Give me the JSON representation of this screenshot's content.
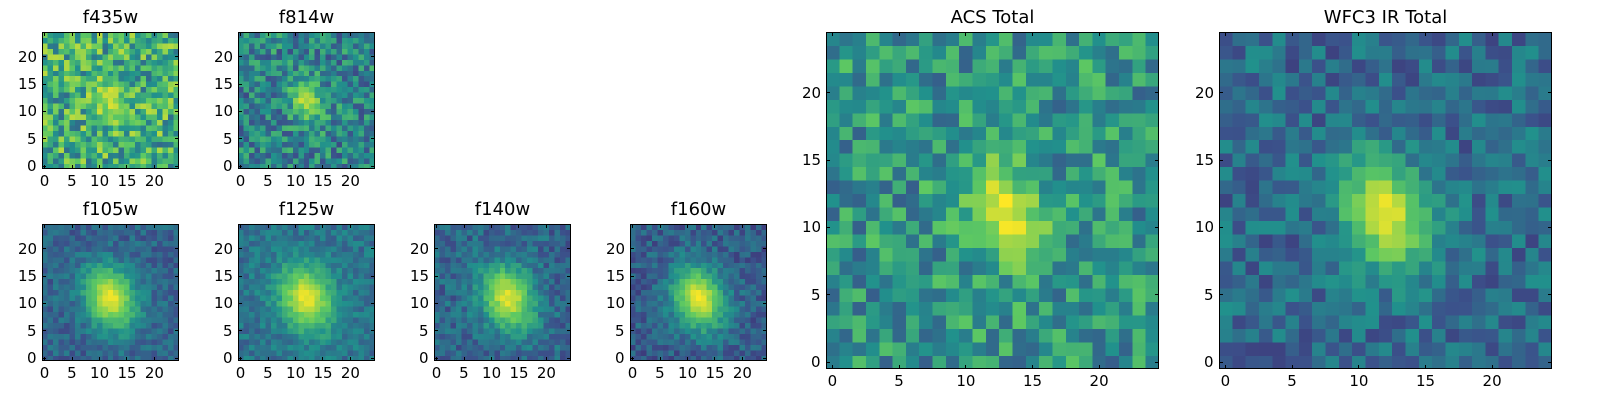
{
  "figure": {
    "colormap": "viridis",
    "colormap_stops": [
      "#440154",
      "#3b528b",
      "#21918c",
      "#5ec962",
      "#fde725"
    ],
    "frame_color": "#000000",
    "background": "#ffffff"
  },
  "chart_data": [
    {
      "type": "heatmap",
      "title": "f435w",
      "x_ticks": [
        0,
        5,
        10,
        15,
        20
      ],
      "y_ticks": [
        0,
        5,
        10,
        15,
        20
      ],
      "xlim": [
        -0.5,
        24.5
      ],
      "ylim": [
        -0.5,
        24.5
      ],
      "grid": false,
      "n_cols": 25,
      "n_rows": 25,
      "source_center": [
        12,
        12
      ],
      "source_peak": 0.88,
      "source_sigma": [
        2.2,
        3.0
      ],
      "background_level": 0.62,
      "noise": 0.55,
      "seed": 11
    },
    {
      "type": "heatmap",
      "title": "f814w",
      "x_ticks": [
        0,
        5,
        10,
        15,
        20
      ],
      "y_ticks": [
        0,
        5,
        10,
        15,
        20
      ],
      "xlim": [
        -0.5,
        24.5
      ],
      "ylim": [
        -0.5,
        24.5
      ],
      "grid": false,
      "n_cols": 25,
      "n_rows": 25,
      "source_center": [
        12,
        12
      ],
      "source_peak": 0.9,
      "source_sigma": [
        2.0,
        2.8
      ],
      "background_level": 0.45,
      "noise": 0.45,
      "seed": 23
    },
    {
      "type": "heatmap",
      "title": "f105w",
      "x_ticks": [
        0,
        5,
        10,
        15,
        20
      ],
      "y_ticks": [
        0,
        5,
        10,
        15,
        20
      ],
      "xlim": [
        -0.5,
        24.5
      ],
      "ylim": [
        -0.5,
        24.5
      ],
      "grid": false,
      "n_cols": 25,
      "n_rows": 25,
      "source_center": [
        12,
        11
      ],
      "source_peak": 0.97,
      "source_sigma": [
        3.2,
        4.2
      ],
      "background_level": 0.32,
      "noise": 0.22,
      "seed": 37
    },
    {
      "type": "heatmap",
      "title": "f125w",
      "x_ticks": [
        0,
        5,
        10,
        15,
        20
      ],
      "y_ticks": [
        0,
        5,
        10,
        15,
        20
      ],
      "xlim": [
        -0.5,
        24.5
      ],
      "ylim": [
        -0.5,
        24.5
      ],
      "grid": false,
      "n_cols": 25,
      "n_rows": 25,
      "source_center": [
        12,
        11
      ],
      "source_peak": 0.97,
      "source_sigma": [
        3.4,
        4.4
      ],
      "background_level": 0.38,
      "noise": 0.22,
      "seed": 41
    },
    {
      "type": "heatmap",
      "title": "f140w",
      "x_ticks": [
        0,
        5,
        10,
        15,
        20
      ],
      "y_ticks": [
        0,
        5,
        10,
        15,
        20
      ],
      "xlim": [
        -0.5,
        24.5
      ],
      "ylim": [
        -0.5,
        24.5
      ],
      "grid": false,
      "n_cols": 25,
      "n_rows": 25,
      "source_center": [
        13,
        11
      ],
      "source_peak": 0.95,
      "source_sigma": [
        3.3,
        4.3
      ],
      "background_level": 0.33,
      "noise": 0.26,
      "seed": 53
    },
    {
      "type": "heatmap",
      "title": "f160w",
      "x_ticks": [
        0,
        5,
        10,
        15,
        20
      ],
      "y_ticks": [
        0,
        5,
        10,
        15,
        20
      ],
      "xlim": [
        -0.5,
        24.5
      ],
      "ylim": [
        -0.5,
        24.5
      ],
      "grid": false,
      "n_cols": 25,
      "n_rows": 25,
      "source_center": [
        12,
        11
      ],
      "source_peak": 0.97,
      "source_sigma": [
        3.2,
        4.2
      ],
      "background_level": 0.3,
      "noise": 0.24,
      "seed": 67
    },
    {
      "type": "heatmap",
      "title": "ACS Total",
      "x_ticks": [
        0,
        5,
        10,
        15,
        20
      ],
      "y_ticks": [
        0,
        5,
        10,
        15,
        20
      ],
      "xlim": [
        -0.5,
        24.5
      ],
      "ylim": [
        -0.5,
        24.5
      ],
      "grid": false,
      "n_cols": 25,
      "n_rows": 25,
      "source_center": [
        13,
        11
      ],
      "source_peak": 0.96,
      "source_sigma": [
        2.0,
        2.8
      ],
      "background_level": 0.52,
      "noise": 0.45,
      "seed": 79
    },
    {
      "type": "heatmap",
      "title": "WFC3 IR Total",
      "x_ticks": [
        0,
        5,
        10,
        15,
        20
      ],
      "y_ticks": [
        0,
        5,
        10,
        15,
        20
      ],
      "xlim": [
        -0.5,
        24.5
      ],
      "ylim": [
        -0.5,
        24.5
      ],
      "grid": false,
      "n_cols": 25,
      "n_rows": 25,
      "source_center": [
        12,
        11
      ],
      "source_peak": 0.97,
      "source_sigma": [
        2.2,
        3.0
      ],
      "background_level": 0.35,
      "noise": 0.3,
      "seed": 97
    }
  ]
}
